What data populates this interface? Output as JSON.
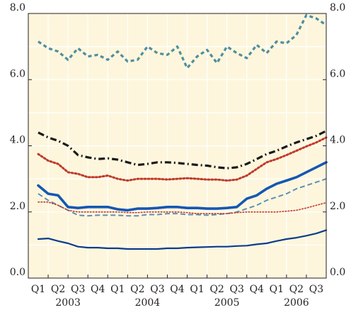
{
  "chart_data": {
    "type": "line",
    "title": "",
    "xlabel": "",
    "ylabel": "",
    "ylim": [
      0,
      8
    ],
    "yticks": [
      0,
      2,
      4,
      6,
      8
    ],
    "ytick_labels": [
      "0.0",
      "2.0",
      "4.0",
      "6.0",
      "8.0"
    ],
    "dual_y_axis": true,
    "grid": true,
    "legend": "none",
    "categories": [
      "Q1",
      "Q2",
      "Q3",
      "Q4",
      "Q1",
      "Q2",
      "Q3",
      "Q4",
      "Q1",
      "Q2",
      "Q3",
      "Q4",
      "Q1",
      "Q2",
      "Q3"
    ],
    "years": [
      {
        "label": "2003",
        "first_index": 0,
        "last_index": 3
      },
      {
        "label": "2004",
        "first_index": 4,
        "last_index": 7
      },
      {
        "label": "2005",
        "first_index": 8,
        "last_index": 11
      },
      {
        "label": "2006",
        "first_index": 12,
        "last_index": 14
      }
    ],
    "colors": {
      "background": "#fdf6dc",
      "grid": "#ffffff",
      "frame": "#231f20",
      "navy": "#0c3c8c",
      "blue": "#1457b4",
      "dashed": "#5d8fb8",
      "dotted_red": "#c0392b",
      "dashdot_black": "#1a1a1a",
      "teal": "#4f8ea0"
    },
    "series": [
      {
        "style": "dotted-teal-thick",
        "color": "#4f8ea0",
        "x": [
          0,
          0.5,
          1,
          1.5,
          2,
          2.5,
          3,
          3.5,
          4,
          4.5,
          5,
          5.5,
          6,
          6.5,
          7,
          7.5,
          8,
          8.5,
          9,
          9.5,
          10,
          10.5,
          11,
          11.5,
          12,
          12.5,
          13,
          13.5,
          14,
          14.5
        ],
        "values": [
          7.15,
          6.95,
          6.85,
          6.6,
          6.95,
          6.7,
          6.75,
          6.6,
          6.85,
          6.55,
          6.6,
          7.0,
          6.8,
          6.75,
          7.0,
          6.35,
          6.7,
          6.9,
          6.5,
          7.0,
          6.8,
          6.65,
          7.05,
          6.8,
          7.15,
          7.1,
          7.35,
          7.95,
          7.85,
          7.65
        ]
      },
      {
        "style": "dashdot-black",
        "color": "#1a1a1a",
        "x": [
          0,
          0.5,
          1,
          1.5,
          2,
          2.5,
          3,
          3.5,
          4,
          4.5,
          5,
          5.5,
          6,
          6.5,
          7,
          7.5,
          8,
          8.5,
          9,
          9.5,
          10,
          10.5,
          11,
          11.5,
          12,
          12.5,
          13,
          13.5,
          14,
          14.5
        ],
        "values": [
          4.4,
          4.25,
          4.15,
          4.0,
          3.72,
          3.65,
          3.6,
          3.62,
          3.58,
          3.5,
          3.42,
          3.45,
          3.5,
          3.5,
          3.48,
          3.45,
          3.42,
          3.4,
          3.35,
          3.32,
          3.35,
          3.45,
          3.6,
          3.75,
          3.85,
          3.98,
          4.1,
          4.2,
          4.3,
          4.45
        ]
      },
      {
        "style": "dotted-red-upper",
        "color": "#c0392b",
        "x": [
          0,
          0.5,
          1,
          1.5,
          2,
          2.5,
          3,
          3.5,
          4,
          4.5,
          5,
          5.5,
          6,
          6.5,
          7,
          7.5,
          8,
          8.5,
          9,
          9.5,
          10,
          10.5,
          11,
          11.5,
          12,
          12.5,
          13,
          13.5,
          14,
          14.5
        ],
        "values": [
          3.75,
          3.55,
          3.45,
          3.2,
          3.15,
          3.05,
          3.05,
          3.1,
          3.0,
          2.95,
          3.0,
          3.0,
          3.0,
          2.98,
          3.0,
          3.02,
          3.0,
          2.98,
          2.98,
          2.95,
          2.98,
          3.1,
          3.3,
          3.5,
          3.6,
          3.72,
          3.85,
          3.98,
          4.1,
          4.25
        ]
      },
      {
        "style": "solid-blue-thick",
        "color": "#1457b4",
        "x": [
          0,
          0.5,
          1,
          1.5,
          2,
          2.5,
          3,
          3.5,
          4,
          4.5,
          5,
          5.5,
          6,
          6.5,
          7,
          7.5,
          8,
          8.5,
          9,
          9.5,
          10,
          10.5,
          11,
          11.5,
          12,
          12.5,
          13,
          13.5,
          14,
          14.5
        ],
        "values": [
          2.8,
          2.55,
          2.5,
          2.15,
          2.12,
          2.15,
          2.15,
          2.15,
          2.08,
          2.05,
          2.1,
          2.1,
          2.12,
          2.15,
          2.15,
          2.12,
          2.12,
          2.1,
          2.1,
          2.12,
          2.15,
          2.4,
          2.5,
          2.7,
          2.85,
          2.95,
          3.05,
          3.2,
          3.35,
          3.5
        ]
      },
      {
        "style": "dashed-blue",
        "color": "#5d8fb8",
        "x": [
          0,
          0.5,
          1,
          1.5,
          2,
          2.5,
          3,
          3.5,
          4,
          4.5,
          5,
          5.5,
          6,
          6.5,
          7,
          7.5,
          8,
          8.5,
          9,
          9.5,
          10,
          10.5,
          11,
          11.5,
          12,
          12.5,
          13,
          13.5,
          14,
          14.5
        ],
        "values": [
          2.55,
          2.35,
          2.2,
          2.05,
          1.9,
          1.88,
          1.9,
          1.9,
          1.9,
          1.88,
          1.88,
          1.92,
          1.92,
          1.95,
          1.95,
          1.92,
          1.92,
          1.9,
          1.92,
          1.95,
          2.0,
          2.1,
          2.2,
          2.35,
          2.45,
          2.55,
          2.7,
          2.8,
          2.9,
          3.0
        ]
      },
      {
        "style": "dotted-red-lower",
        "color": "#c0392b",
        "x": [
          0,
          0.5,
          1,
          1.5,
          2,
          2.5,
          3,
          3.5,
          4,
          4.5,
          5,
          5.5,
          6,
          6.5,
          7,
          7.5,
          8,
          8.5,
          9,
          9.5,
          10,
          10.5,
          11,
          11.5,
          12,
          12.5,
          13,
          13.5,
          14,
          14.5
        ],
        "values": [
          2.3,
          2.3,
          2.2,
          2.05,
          2.0,
          2.0,
          2.0,
          2.0,
          2.0,
          1.98,
          1.98,
          2.0,
          2.0,
          2.0,
          2.0,
          1.98,
          1.95,
          1.95,
          1.95,
          1.95,
          1.98,
          2.0,
          2.0,
          2.0,
          2.0,
          2.02,
          2.05,
          2.12,
          2.2,
          2.28
        ]
      },
      {
        "style": "solid-navy",
        "color": "#0c3c8c",
        "x": [
          0,
          0.5,
          1,
          1.5,
          2,
          2.5,
          3,
          3.5,
          4,
          4.5,
          5,
          5.5,
          6,
          6.5,
          7,
          7.5,
          8,
          8.5,
          9,
          9.5,
          10,
          10.5,
          11,
          11.5,
          12,
          12.5,
          13,
          13.5,
          14,
          14.5
        ],
        "values": [
          1.18,
          1.2,
          1.12,
          1.05,
          0.95,
          0.92,
          0.92,
          0.9,
          0.9,
          0.88,
          0.88,
          0.88,
          0.88,
          0.9,
          0.9,
          0.92,
          0.93,
          0.94,
          0.95,
          0.95,
          0.97,
          0.98,
          1.02,
          1.05,
          1.12,
          1.18,
          1.22,
          1.28,
          1.35,
          1.45
        ]
      }
    ]
  }
}
